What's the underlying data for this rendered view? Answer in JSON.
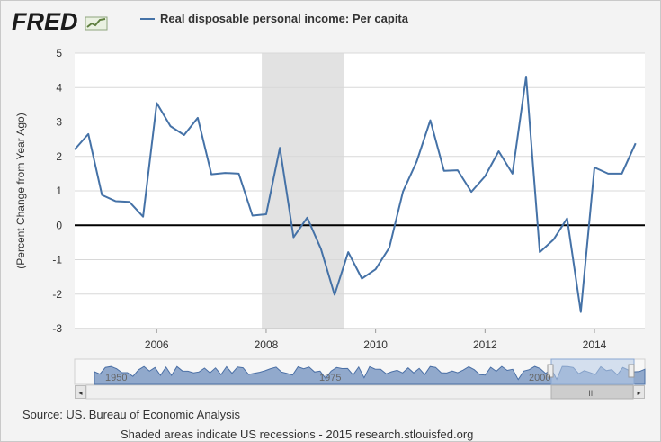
{
  "header": {
    "logo_text": "FRED",
    "legend_label": "Real disposable personal income: Per capita",
    "series_color": "#4572a7"
  },
  "footer": {
    "source": "Source: US. Bureau of Economic Analysis",
    "note": "Shaded areas indicate US recessions - 2015 research.stlouisfed.org"
  },
  "navigator": {
    "labels": [
      "1950",
      "1975",
      "2000"
    ],
    "scrollbar_grip": "III",
    "left_arrow": "◂",
    "right_arrow": "▸"
  },
  "chart_data": {
    "type": "line",
    "ylabel": "(Percent Change from Year Ago)",
    "ylim": [
      -3,
      5
    ],
    "yticks": [
      -3,
      -2,
      -1,
      0,
      1,
      2,
      3,
      4,
      5
    ],
    "xlim": [
      2004.5,
      2014.92
    ],
    "xticks": [
      2006,
      2008,
      2010,
      2012,
      2014
    ],
    "recession": [
      2007.92,
      2009.42
    ],
    "grid": true,
    "legend_position": "top",
    "series": [
      {
        "name": "Real disposable personal income: Per capita",
        "color": "#4572a7",
        "x": [
          2004.5,
          2004.75,
          2005.0,
          2005.25,
          2005.5,
          2005.75,
          2006.0,
          2006.25,
          2006.5,
          2006.75,
          2007.0,
          2007.25,
          2007.5,
          2007.75,
          2008.0,
          2008.25,
          2008.5,
          2008.75,
          2009.0,
          2009.25,
          2009.5,
          2009.75,
          2010.0,
          2010.25,
          2010.5,
          2010.75,
          2011.0,
          2011.25,
          2011.5,
          2011.75,
          2012.0,
          2012.25,
          2012.5,
          2012.75,
          2013.0,
          2013.25,
          2013.5,
          2013.75,
          2014.0,
          2014.25,
          2014.5,
          2014.75
        ],
        "values": [
          2.2,
          2.65,
          0.88,
          0.7,
          0.68,
          0.25,
          3.55,
          2.88,
          2.62,
          3.12,
          1.48,
          1.52,
          1.5,
          0.28,
          0.32,
          2.25,
          -0.35,
          0.22,
          -0.68,
          -2.02,
          -0.78,
          -1.55,
          -1.28,
          -0.65,
          0.98,
          1.85,
          3.05,
          1.58,
          1.6,
          0.97,
          1.42,
          2.15,
          1.5,
          4.32,
          -0.78,
          -0.42,
          0.2,
          -2.52,
          1.68,
          1.5,
          1.5,
          2.38
        ]
      }
    ]
  }
}
